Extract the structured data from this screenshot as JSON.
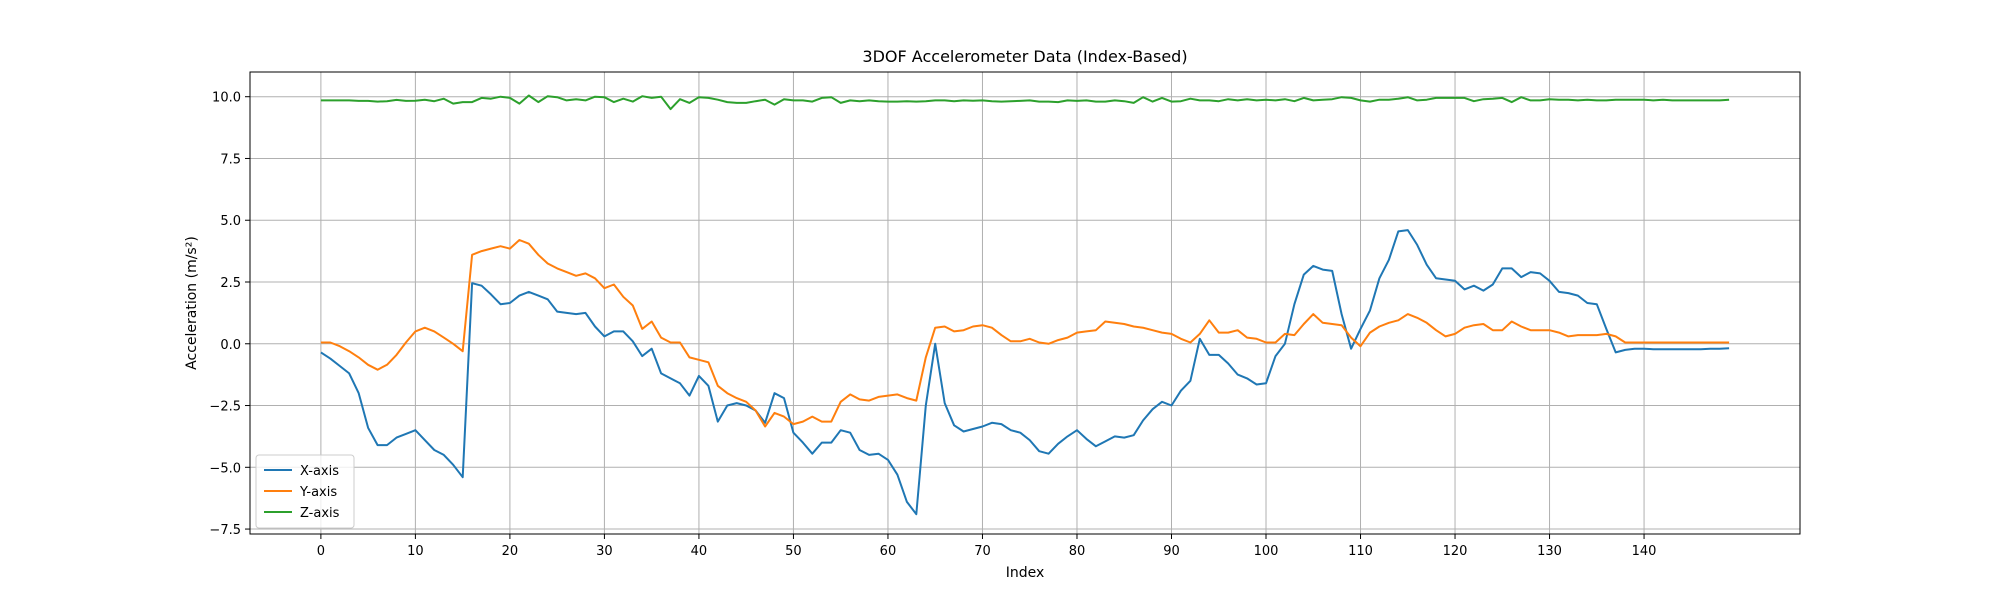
{
  "chart_data": {
    "type": "line",
    "title": "3DOF Accelerometer Data (Index-Based)",
    "xlabel": "Index",
    "ylabel": "Acceleration (m/s²)",
    "xlim": [
      -7.5,
      156.5
    ],
    "ylim": [
      -7.7,
      11.0
    ],
    "xticks": [
      0,
      10,
      20,
      30,
      40,
      50,
      60,
      70,
      80,
      90,
      100,
      110,
      120,
      130,
      140
    ],
    "yticks": [
      -7.5,
      -5.0,
      -2.5,
      0.0,
      2.5,
      5.0,
      7.5,
      10.0
    ],
    "ytick_labels": [
      "−7.5",
      "−5.0",
      "−2.5",
      "0.0",
      "2.5",
      "5.0",
      "7.5",
      "10.0"
    ],
    "grid": true,
    "legend_position": "lower-left",
    "series": [
      {
        "name": "X-axis",
        "color": "#1f77b4",
        "values": [
          -0.35,
          -0.6,
          -0.9,
          -1.2,
          -2.0,
          -3.4,
          -4.1,
          -4.1,
          -3.8,
          -3.65,
          -3.5,
          -3.9,
          -4.3,
          -4.5,
          -4.9,
          -5.4,
          2.45,
          2.35,
          2.0,
          1.6,
          1.65,
          1.95,
          2.1,
          1.95,
          1.8,
          1.3,
          1.25,
          1.2,
          1.25,
          0.7,
          0.3,
          0.5,
          0.5,
          0.1,
          -0.5,
          -0.2,
          -1.2,
          -1.4,
          -1.6,
          -2.1,
          -1.3,
          -1.7,
          -3.15,
          -2.5,
          -2.4,
          -2.5,
          -2.7,
          -3.2,
          -2.0,
          -2.2,
          -3.6,
          -4.0,
          -4.45,
          -4.0,
          -4.0,
          -3.5,
          -3.6,
          -4.3,
          -4.5,
          -4.45,
          -4.7,
          -5.3,
          -6.4,
          -6.9,
          -2.5,
          0.0,
          -2.4,
          -3.3,
          -3.55,
          -3.45,
          -3.35,
          -3.2,
          -3.25,
          -3.5,
          -3.6,
          -3.9,
          -4.35,
          -4.45,
          -4.05,
          -3.75,
          -3.5,
          -3.85,
          -4.15,
          -3.95,
          -3.75,
          -3.8,
          -3.7,
          -3.1,
          -2.65,
          -2.35,
          -2.5,
          -1.9,
          -1.5,
          0.2,
          -0.45,
          -0.45,
          -0.8,
          -1.25,
          -1.4,
          -1.65,
          -1.6,
          -0.5,
          0.0,
          1.6,
          2.8,
          3.15,
          3.0,
          2.95,
          1.2,
          -0.2,
          0.6,
          1.35,
          2.65,
          3.4,
          4.55,
          4.6,
          4.0,
          3.2,
          2.65,
          2.6,
          2.55,
          2.2,
          2.35,
          2.15,
          2.4,
          3.05,
          3.05,
          2.7,
          2.9,
          2.85,
          2.55,
          2.1,
          2.05,
          1.95,
          1.65,
          1.6,
          0.6,
          -0.35,
          -0.25,
          -0.2,
          -0.2,
          -0.22,
          -0.22,
          -0.22,
          -0.22,
          -0.22,
          -0.22,
          -0.2,
          -0.2,
          -0.18
        ]
      },
      {
        "name": "Y-axis",
        "color": "#ff7f0e",
        "values": [
          0.05,
          0.05,
          -0.1,
          -0.3,
          -0.55,
          -0.85,
          -1.05,
          -0.85,
          -0.45,
          0.05,
          0.5,
          0.65,
          0.5,
          0.25,
          0.0,
          -0.3,
          3.6,
          3.75,
          3.85,
          3.95,
          3.85,
          4.2,
          4.05,
          3.6,
          3.25,
          3.05,
          2.9,
          2.75,
          2.85,
          2.65,
          2.25,
          2.4,
          1.9,
          1.55,
          0.6,
          0.9,
          0.25,
          0.05,
          0.05,
          -0.55,
          -0.65,
          -0.75,
          -1.7,
          -2.0,
          -2.2,
          -2.35,
          -2.7,
          -3.35,
          -2.8,
          -2.95,
          -3.25,
          -3.15,
          -2.95,
          -3.15,
          -3.15,
          -2.35,
          -2.05,
          -2.25,
          -2.3,
          -2.15,
          -2.1,
          -2.05,
          -2.2,
          -2.3,
          -0.55,
          0.65,
          0.7,
          0.5,
          0.55,
          0.7,
          0.75,
          0.65,
          0.35,
          0.1,
          0.1,
          0.2,
          0.05,
          0.0,
          0.15,
          0.25,
          0.45,
          0.5,
          0.55,
          0.9,
          0.85,
          0.8,
          0.7,
          0.65,
          0.55,
          0.45,
          0.4,
          0.2,
          0.05,
          0.4,
          0.95,
          0.45,
          0.45,
          0.55,
          0.25,
          0.2,
          0.05,
          0.05,
          0.4,
          0.35,
          0.8,
          1.2,
          0.85,
          0.8,
          0.75,
          0.25,
          -0.1,
          0.45,
          0.7,
          0.85,
          0.95,
          1.2,
          1.05,
          0.85,
          0.55,
          0.3,
          0.4,
          0.65,
          0.75,
          0.8,
          0.55,
          0.55,
          0.9,
          0.7,
          0.55,
          0.55,
          0.55,
          0.45,
          0.3,
          0.35,
          0.35,
          0.35,
          0.4,
          0.3,
          0.05,
          0.05,
          0.05,
          0.05,
          0.05,
          0.05,
          0.05,
          0.05,
          0.05,
          0.05,
          0.05,
          0.05
        ]
      },
      {
        "name": "Z-axis",
        "color": "#2ca02c",
        "values": [
          9.85,
          9.85,
          9.85,
          9.85,
          9.83,
          9.83,
          9.8,
          9.82,
          9.87,
          9.83,
          9.84,
          9.88,
          9.82,
          9.92,
          9.72,
          9.78,
          9.78,
          9.95,
          9.92,
          10.0,
          9.95,
          9.72,
          10.05,
          9.78,
          10.02,
          9.98,
          9.85,
          9.9,
          9.85,
          10.0,
          9.98,
          9.78,
          9.92,
          9.8,
          10.02,
          9.95,
          10.0,
          9.5,
          9.9,
          9.75,
          9.98,
          9.95,
          9.88,
          9.78,
          9.75,
          9.75,
          9.82,
          9.88,
          9.68,
          9.9,
          9.85,
          9.85,
          9.8,
          9.95,
          9.98,
          9.75,
          9.85,
          9.82,
          9.85,
          9.82,
          9.8,
          9.8,
          9.82,
          9.8,
          9.82,
          9.85,
          9.85,
          9.82,
          9.85,
          9.84,
          9.85,
          9.82,
          9.8,
          9.82,
          9.83,
          9.85,
          9.8,
          9.8,
          9.78,
          9.85,
          9.83,
          9.85,
          9.8,
          9.8,
          9.85,
          9.82,
          9.75,
          9.98,
          9.8,
          9.95,
          9.8,
          9.82,
          9.92,
          9.85,
          9.85,
          9.82,
          9.9,
          9.85,
          9.9,
          9.85,
          9.88,
          9.85,
          9.9,
          9.82,
          9.95,
          9.85,
          9.88,
          9.9,
          9.98,
          9.95,
          9.85,
          9.8,
          9.88,
          9.88,
          9.92,
          9.98,
          9.85,
          9.88,
          9.95,
          9.95,
          9.95,
          9.95,
          9.82,
          9.9,
          9.92,
          9.95,
          9.78,
          9.98,
          9.85,
          9.85,
          9.9,
          9.88,
          9.88,
          9.85,
          9.88,
          9.85,
          9.85,
          9.88,
          9.88,
          9.88,
          9.88,
          9.85,
          9.88,
          9.85,
          9.85,
          9.85,
          9.85,
          9.85,
          9.85,
          9.88
        ]
      }
    ]
  }
}
